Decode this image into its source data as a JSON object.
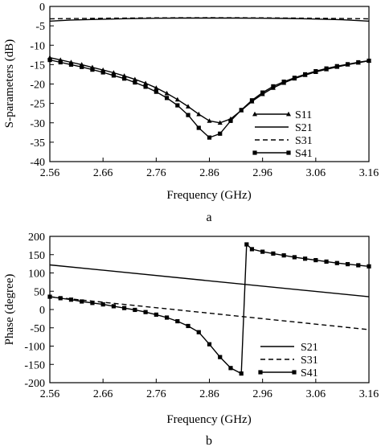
{
  "chart_data": [
    {
      "type": "line",
      "panel_label": "a",
      "xlabel": "Frequency (GHz)",
      "ylabel": "S-parameters (dB)",
      "xlim": [
        2.56,
        3.16
      ],
      "ylim": [
        -40,
        0
      ],
      "xticks": [
        "2.56",
        "2.66",
        "2.76",
        "2.86",
        "2.96",
        "3.06",
        "3.16"
      ],
      "yticks": [
        "0",
        "-5",
        "-10",
        "-15",
        "-20",
        "-25",
        "-30",
        "-35",
        "-40"
      ],
      "grid": false,
      "legend_position": "right",
      "series": [
        {
          "name": "S11",
          "style": "solid",
          "marker": "triangle",
          "x": [
            2.56,
            2.58,
            2.6,
            2.62,
            2.64,
            2.66,
            2.68,
            2.7,
            2.72,
            2.74,
            2.76,
            2.78,
            2.8,
            2.82,
            2.84,
            2.86,
            2.88,
            2.9,
            2.92,
            2.94,
            2.96,
            2.98,
            3.0,
            3.02,
            3.04,
            3.06,
            3.08,
            3.1,
            3.12,
            3.14,
            3.16
          ],
          "y": [
            -13.2,
            -13.8,
            -14.4,
            -15.0,
            -15.7,
            -16.4,
            -17.1,
            -17.9,
            -18.8,
            -19.8,
            -21.0,
            -22.4,
            -24.0,
            -25.8,
            -27.8,
            -29.5,
            -30.0,
            -29.0,
            -26.8,
            -24.5,
            -22.6,
            -21.0,
            -19.7,
            -18.6,
            -17.7,
            -16.9,
            -16.2,
            -15.6,
            -15.0,
            -14.5,
            -14.0
          ]
        },
        {
          "name": "S21",
          "style": "solid",
          "marker": "none",
          "x": [
            2.56,
            2.6,
            2.66,
            2.71,
            2.76,
            2.81,
            2.86,
            2.91,
            2.96,
            3.01,
            3.06,
            3.11,
            3.16
          ],
          "y": [
            -3.8,
            -3.5,
            -3.3,
            -3.15,
            -3.05,
            -3.0,
            -3.0,
            -3.0,
            -3.05,
            -3.1,
            -3.25,
            -3.45,
            -3.8
          ]
        },
        {
          "name": "S31",
          "style": "dashed",
          "marker": "none",
          "x": [
            2.56,
            2.66,
            2.76,
            2.86,
            2.96,
            3.06,
            3.16
          ],
          "y": [
            -3.2,
            -3.05,
            -2.95,
            -2.9,
            -2.95,
            -3.05,
            -3.2
          ]
        },
        {
          "name": "S41",
          "style": "solid",
          "marker": "square",
          "x": [
            2.56,
            2.58,
            2.6,
            2.62,
            2.64,
            2.66,
            2.68,
            2.7,
            2.72,
            2.74,
            2.76,
            2.78,
            2.8,
            2.82,
            2.84,
            2.86,
            2.88,
            2.9,
            2.92,
            2.94,
            2.96,
            2.98,
            3.0,
            3.02,
            3.04,
            3.06,
            3.08,
            3.1,
            3.12,
            3.14,
            3.16
          ],
          "y": [
            -13.8,
            -14.4,
            -15.0,
            -15.6,
            -16.3,
            -17.0,
            -17.8,
            -18.6,
            -19.6,
            -20.7,
            -22.0,
            -23.6,
            -25.5,
            -28.0,
            -31.3,
            -33.8,
            -32.8,
            -29.5,
            -26.7,
            -24.2,
            -22.2,
            -20.6,
            -19.4,
            -18.4,
            -17.5,
            -16.7,
            -16.0,
            -15.4,
            -14.9,
            -14.4,
            -14.0
          ]
        }
      ]
    },
    {
      "type": "line",
      "panel_label": "b",
      "xlabel": "Frequency (GHz)",
      "ylabel": "Phase (degree)",
      "xlim": [
        2.56,
        3.16
      ],
      "ylim": [
        -200,
        200
      ],
      "xticks": [
        "2.56",
        "2.66",
        "2.76",
        "2.86",
        "2.96",
        "3.06",
        "3.16"
      ],
      "yticks": [
        "200",
        "150",
        "100",
        "50",
        "0",
        "-50",
        "-100",
        "-150",
        "-200"
      ],
      "grid": false,
      "legend_position": "bottom-right",
      "series": [
        {
          "name": "S21",
          "style": "solid",
          "marker": "none",
          "x": [
            2.56,
            3.16
          ],
          "y": [
            122,
            35
          ]
        },
        {
          "name": "S31",
          "style": "dashed",
          "marker": "none",
          "x": [
            2.56,
            3.16
          ],
          "y": [
            35,
            -55
          ]
        },
        {
          "name": "S41",
          "style": "solid",
          "marker": "square",
          "x": [
            2.56,
            2.58,
            2.6,
            2.62,
            2.64,
            2.66,
            2.68,
            2.7,
            2.72,
            2.74,
            2.76,
            2.78,
            2.8,
            2.82,
            2.84,
            2.86,
            2.88,
            2.9,
            2.92,
            2.93,
            2.94,
            2.96,
            2.98,
            3.0,
            3.02,
            3.04,
            3.06,
            3.08,
            3.1,
            3.12,
            3.14,
            3.16
          ],
          "y": [
            35,
            31,
            27,
            22,
            18,
            14,
            9,
            4,
            -1,
            -7,
            -14,
            -22,
            -32,
            -45,
            -62,
            -95,
            -130,
            -160,
            -175,
            178,
            165,
            158,
            153,
            148,
            143,
            139,
            135,
            131,
            127,
            124,
            121,
            118
          ]
        }
      ]
    }
  ]
}
